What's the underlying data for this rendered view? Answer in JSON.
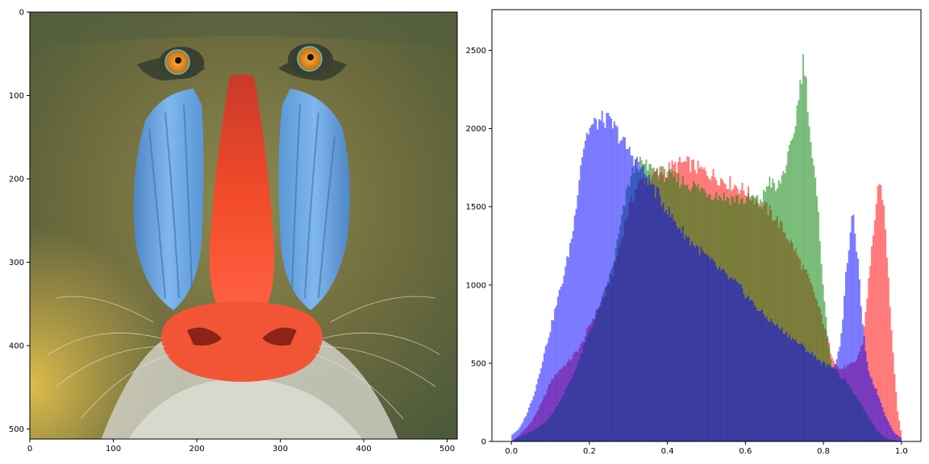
{
  "figure": {
    "panels": [
      "image",
      "histogram"
    ]
  },
  "chart_data": [
    {
      "type": "image",
      "subject": "mandrill (baboon) face, color photograph",
      "xlim": [
        0,
        512
      ],
      "ylim": [
        512,
        0
      ],
      "x_ticks": [
        0,
        100,
        200,
        300,
        400,
        500
      ],
      "y_ticks": [
        0,
        100,
        200,
        300,
        400,
        500
      ],
      "colors": {
        "fur": "#6b6a3c",
        "fur_light": "#a89a5a",
        "fur_yellow": "#d7b34a",
        "cheek_blue": "#6aa7e3",
        "nose_red": "#f04a2a",
        "eye_orange": "#e0861c",
        "beard": "#cfcfc4"
      }
    },
    {
      "type": "histogram",
      "xlim": [
        -0.05,
        1.05
      ],
      "ylim": [
        0,
        2760
      ],
      "x_ticks": [
        0.0,
        0.2,
        0.4,
        0.6,
        0.8,
        1.0
      ],
      "x_tick_labels": [
        "0.0",
        "0.2",
        "0.4",
        "0.6",
        "0.8",
        "1.0"
      ],
      "y_ticks": [
        0,
        500,
        1000,
        1500,
        2000,
        2500
      ],
      "y_tick_labels": [
        "0",
        "500",
        "1000",
        "1500",
        "2000",
        "2500"
      ],
      "grid": false,
      "legend": false,
      "series": [
        {
          "color": "#ff0000",
          "opacity": 0.5,
          "points": [
            [
              0.0,
              0
            ],
            [
              0.02,
              40
            ],
            [
              0.05,
              120
            ],
            [
              0.08,
              260
            ],
            [
              0.1,
              380
            ],
            [
              0.12,
              450
            ],
            [
              0.15,
              520
            ],
            [
              0.18,
              620
            ],
            [
              0.2,
              740
            ],
            [
              0.22,
              840
            ],
            [
              0.24,
              940
            ],
            [
              0.26,
              1080
            ],
            [
              0.28,
              1280
            ],
            [
              0.3,
              1480
            ],
            [
              0.32,
              1620
            ],
            [
              0.34,
              1680
            ],
            [
              0.36,
              1700
            ],
            [
              0.38,
              1720
            ],
            [
              0.4,
              1740
            ],
            [
              0.42,
              1760
            ],
            [
              0.44,
              1780
            ],
            [
              0.46,
              1770
            ],
            [
              0.48,
              1740
            ],
            [
              0.5,
              1720
            ],
            [
              0.52,
              1700
            ],
            [
              0.55,
              1660
            ],
            [
              0.58,
              1630
            ],
            [
              0.6,
              1600
            ],
            [
              0.62,
              1560
            ],
            [
              0.65,
              1500
            ],
            [
              0.68,
              1420
            ],
            [
              0.7,
              1340
            ],
            [
              0.72,
              1260
            ],
            [
              0.74,
              1150
            ],
            [
              0.76,
              1050
            ],
            [
              0.78,
              920
            ],
            [
              0.8,
              760
            ],
            [
              0.82,
              560
            ],
            [
              0.84,
              460
            ],
            [
              0.86,
              480
            ],
            [
              0.88,
              500
            ],
            [
              0.9,
              620
            ],
            [
              0.91,
              880
            ],
            [
              0.92,
              1120
            ],
            [
              0.93,
              1400
            ],
            [
              0.94,
              1600
            ],
            [
              0.95,
              1620
            ],
            [
              0.96,
              1320
            ],
            [
              0.97,
              900
            ],
            [
              0.98,
              520
            ],
            [
              0.99,
              200
            ],
            [
              1.0,
              40
            ]
          ]
        },
        {
          "color": "#008000",
          "opacity": 0.5,
          "points": [
            [
              0.0,
              0
            ],
            [
              0.02,
              30
            ],
            [
              0.05,
              60
            ],
            [
              0.08,
              110
            ],
            [
              0.1,
              160
            ],
            [
              0.12,
              240
            ],
            [
              0.15,
              380
            ],
            [
              0.18,
              560
            ],
            [
              0.2,
              700
            ],
            [
              0.22,
              820
            ],
            [
              0.24,
              960
            ],
            [
              0.26,
              1120
            ],
            [
              0.28,
              1380
            ],
            [
              0.3,
              1640
            ],
            [
              0.32,
              1780
            ],
            [
              0.34,
              1760
            ],
            [
              0.36,
              1740
            ],
            [
              0.38,
              1720
            ],
            [
              0.4,
              1700
            ],
            [
              0.42,
              1680
            ],
            [
              0.44,
              1660
            ],
            [
              0.46,
              1640
            ],
            [
              0.48,
              1620
            ],
            [
              0.5,
              1600
            ],
            [
              0.52,
              1580
            ],
            [
              0.55,
              1560
            ],
            [
              0.58,
              1550
            ],
            [
              0.6,
              1540
            ],
            [
              0.62,
              1560
            ],
            [
              0.64,
              1520
            ],
            [
              0.66,
              1680
            ],
            [
              0.68,
              1600
            ],
            [
              0.7,
              1740
            ],
            [
              0.71,
              1820
            ],
            [
              0.72,
              1900
            ],
            [
              0.73,
              2080
            ],
            [
              0.74,
              2280
            ],
            [
              0.75,
              2460
            ],
            [
              0.76,
              2160
            ],
            [
              0.77,
              1840
            ],
            [
              0.78,
              1640
            ],
            [
              0.79,
              1340
            ],
            [
              0.8,
              980
            ],
            [
              0.81,
              680
            ],
            [
              0.82,
              500
            ],
            [
              0.84,
              420
            ],
            [
              0.86,
              380
            ],
            [
              0.88,
              300
            ],
            [
              0.9,
              220
            ],
            [
              0.92,
              140
            ],
            [
              0.94,
              60
            ],
            [
              0.96,
              20
            ],
            [
              1.0,
              0
            ]
          ]
        },
        {
          "color": "#0000ff",
          "opacity": 0.5,
          "points": [
            [
              -0.005,
              60
            ],
            [
              0.0,
              40
            ],
            [
              0.02,
              80
            ],
            [
              0.04,
              180
            ],
            [
              0.06,
              320
            ],
            [
              0.08,
              520
            ],
            [
              0.1,
              720
            ],
            [
              0.12,
              920
            ],
            [
              0.14,
              1120
            ],
            [
              0.16,
              1380
            ],
            [
              0.17,
              1620
            ],
            [
              0.18,
              1820
            ],
            [
              0.19,
              1940
            ],
            [
              0.2,
              2000
            ],
            [
              0.22,
              2040
            ],
            [
              0.24,
              2060
            ],
            [
              0.26,
              2020
            ],
            [
              0.28,
              1940
            ],
            [
              0.3,
              1860
            ],
            [
              0.32,
              1800
            ],
            [
              0.34,
              1720
            ],
            [
              0.36,
              1640
            ],
            [
              0.38,
              1560
            ],
            [
              0.4,
              1480
            ],
            [
              0.42,
              1400
            ],
            [
              0.44,
              1340
            ],
            [
              0.46,
              1280
            ],
            [
              0.48,
              1230
            ],
            [
              0.5,
              1180
            ],
            [
              0.52,
              1130
            ],
            [
              0.55,
              1060
            ],
            [
              0.58,
              1000
            ],
            [
              0.6,
              940
            ],
            [
              0.62,
              880
            ],
            [
              0.65,
              800
            ],
            [
              0.68,
              740
            ],
            [
              0.7,
              700
            ],
            [
              0.72,
              660
            ],
            [
              0.74,
              620
            ],
            [
              0.76,
              580
            ],
            [
              0.78,
              540
            ],
            [
              0.8,
              500
            ],
            [
              0.82,
              470
            ],
            [
              0.83,
              500
            ],
            [
              0.84,
              580
            ],
            [
              0.85,
              800
            ],
            [
              0.86,
              1140
            ],
            [
              0.87,
              1340
            ],
            [
              0.875,
              1440
            ],
            [
              0.88,
              1380
            ],
            [
              0.89,
              1100
            ],
            [
              0.9,
              760
            ],
            [
              0.91,
              520
            ],
            [
              0.92,
              420
            ],
            [
              0.94,
              300
            ],
            [
              0.96,
              160
            ],
            [
              0.98,
              60
            ],
            [
              1.0,
              20
            ]
          ]
        }
      ]
    }
  ]
}
